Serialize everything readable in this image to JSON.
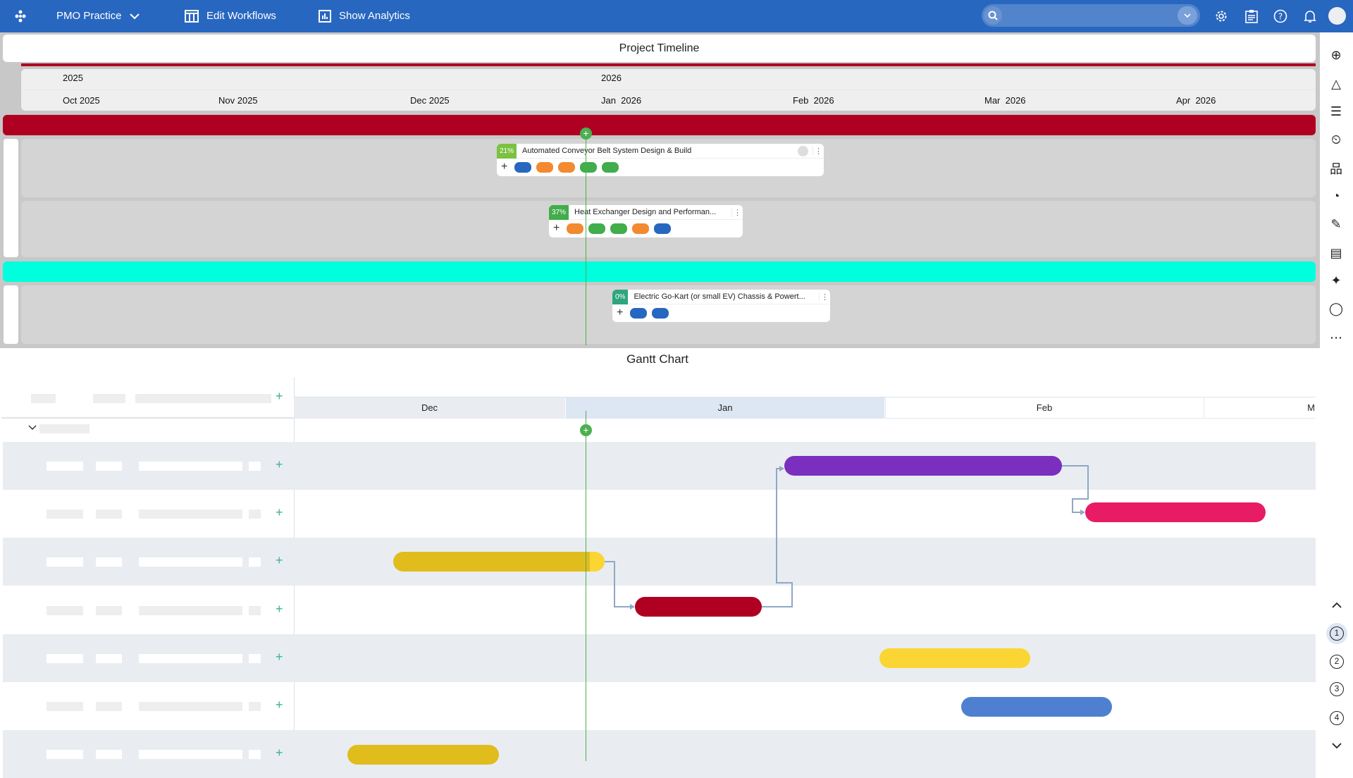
{
  "header": {
    "workspace": "PMO Practice",
    "edit_workflows": "Edit Workflows",
    "show_analytics": "Show Analytics",
    "search_placeholder": "",
    "icons": [
      "logo-icon",
      "chevron-down-icon",
      "table-icon",
      "analytics-icon",
      "search-icon",
      "settings-icon",
      "clipboard-icon",
      "help-icon",
      "bell-icon",
      "avatar"
    ]
  },
  "timeline": {
    "title": "Project Timeline",
    "years": [
      "2025",
      "2026"
    ],
    "months": [
      "Oct 2025",
      "Nov 2025",
      "Dec 2025",
      "Jan  2026",
      "Feb  2026",
      "Mar  2026",
      "Apr  2026"
    ],
    "bands": {
      "red": "#b00022",
      "cyan": "#00ffdd"
    },
    "cards": [
      {
        "pct": "21%",
        "pct_color": "#7cc142",
        "title": "Automated Conveyor Belt System Design & Build",
        "pills": [
          "#2767c0",
          "#f38a30",
          "#f38a30",
          "#42ad4b",
          "#42ad4b"
        ]
      },
      {
        "pct": "37%",
        "pct_color": "#42ad4b",
        "title": "Heat Exchanger Design and Performan...",
        "pills": [
          "#f38a30",
          "#42ad4b",
          "#42ad4b",
          "#f38a30",
          "#2767c0"
        ]
      },
      {
        "pct": "0%",
        "pct_color": "#2fa57c",
        "title": "Electric Go-Kart (or small EV) Chassis & Powert...",
        "pills": [
          "#2767c0",
          "#2767c0"
        ]
      }
    ]
  },
  "gantt": {
    "title": "Gantt Chart",
    "months": [
      "Dec",
      "Jan",
      "Feb",
      "M"
    ],
    "bar_colors": [
      "#7b2fbf",
      "#e81c64",
      "#e0bc1c",
      "#b00022",
      "#fbd534",
      "#4f7fd0",
      "#e0bc1c"
    ]
  },
  "sidebar": {
    "icons": [
      "add-circle-icon",
      "shapes-icon",
      "filter-icon",
      "briefcase-clock-icon",
      "hierarchy-icon",
      "palette-icon",
      "design-tools-icon",
      "document-icon",
      "sparkle-icon",
      "shapes-overlap-icon",
      "more-icon"
    ]
  },
  "pager": {
    "pages": [
      "1",
      "2",
      "3",
      "4"
    ],
    "active": "1"
  }
}
